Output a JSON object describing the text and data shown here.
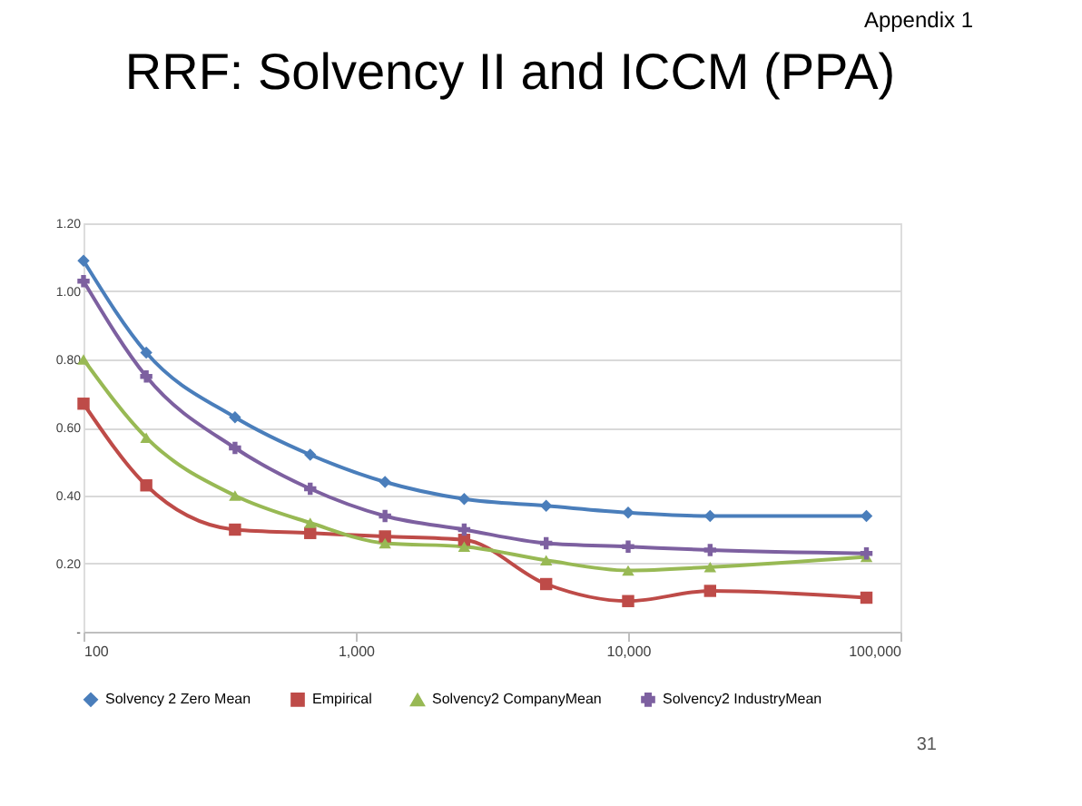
{
  "chart_data": {
    "type": "line",
    "title": "RRF: Solvency II and ICCM (PPA)",
    "annotations": [
      "Appendix 1",
      "31"
    ],
    "x": [
      100,
      170,
      360,
      680,
      1280,
      2500,
      5000,
      10000,
      20000,
      75000
    ],
    "series": [
      {
        "name": "Solvency 2 Zero Mean",
        "color": "#4a7ebb",
        "marker": "diamond",
        "values": [
          1.09,
          0.82,
          0.63,
          0.52,
          0.44,
          0.39,
          0.37,
          0.35,
          0.34,
          0.34
        ]
      },
      {
        "name": "Empirical",
        "color": "#be4b48",
        "marker": "square",
        "values": [
          0.67,
          0.43,
          0.3,
          0.29,
          0.28,
          0.27,
          0.14,
          0.09,
          0.12,
          0.1
        ]
      },
      {
        "name": "Solvency2 CompanyMean",
        "color": "#98b954",
        "marker": "triangle",
        "values": [
          0.8,
          0.57,
          0.4,
          0.32,
          0.26,
          0.25,
          0.21,
          0.18,
          0.19,
          0.22
        ]
      },
      {
        "name": "Solvency2 IndustryMean",
        "color": "#7d60a0",
        "marker": "cross",
        "values": [
          1.03,
          0.75,
          0.54,
          0.42,
          0.34,
          0.3,
          0.26,
          0.25,
          0.24,
          0.23
        ]
      }
    ],
    "log": "x",
    "xlim": [
      100,
      100000
    ],
    "xticks": [
      {
        "value": 100,
        "label": "100"
      },
      {
        "value": 1000,
        "label": "1,000"
      },
      {
        "value": 10000,
        "label": "10,000"
      },
      {
        "value": 100000,
        "label": "100,000"
      }
    ],
    "ylim": [
      0,
      1.2
    ],
    "yticks": [
      {
        "value": 0,
        "label": "-"
      },
      {
        "value": 0.2,
        "label": "0.20"
      },
      {
        "value": 0.4,
        "label": "0.40"
      },
      {
        "value": 0.6,
        "label": "0.60"
      },
      {
        "value": 0.8,
        "label": "0.80"
      },
      {
        "value": 1.0,
        "label": "1.00"
      },
      {
        "value": 1.2,
        "label": "1.20"
      }
    ],
    "grid": "y",
    "legend": "bottom",
    "line_style": "solid"
  }
}
